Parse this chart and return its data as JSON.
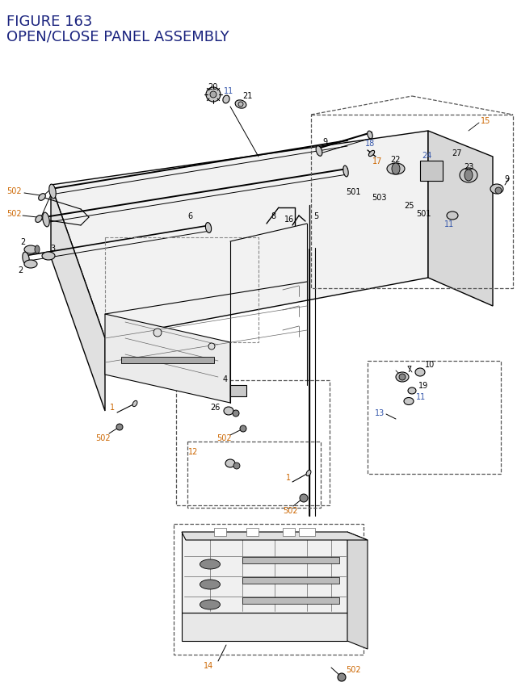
{
  "title_line1": "FIGURE 163",
  "title_line2": "OPEN/CLOSE PANEL ASSEMBLY",
  "bg_color": "#ffffff",
  "black": "#000000",
  "blue": "#3355aa",
  "orange": "#cc6600",
  "dblue": "#1a237e",
  "gray": "#666666",
  "lgray": "#aaaaaa",
  "partgray": "#c8c8c8",
  "darkgray": "#888888"
}
